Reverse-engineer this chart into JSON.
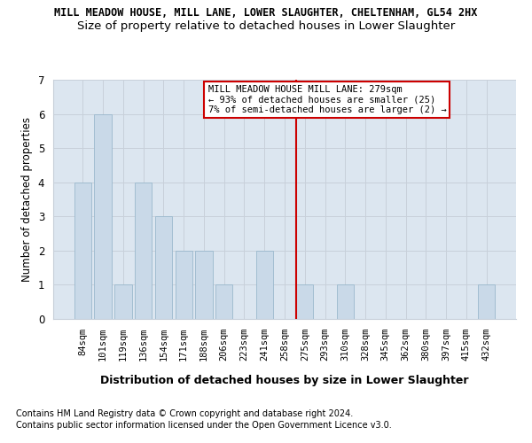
{
  "title": "MILL MEADOW HOUSE, MILL LANE, LOWER SLAUGHTER, CHELTENHAM, GL54 2HX",
  "subtitle": "Size of property relative to detached houses in Lower Slaughter",
  "xlabel": "Distribution of detached houses by size in Lower Slaughter",
  "ylabel": "Number of detached properties",
  "categories": [
    "84sqm",
    "101sqm",
    "119sqm",
    "136sqm",
    "154sqm",
    "171sqm",
    "188sqm",
    "206sqm",
    "223sqm",
    "241sqm",
    "258sqm",
    "275sqm",
    "293sqm",
    "310sqm",
    "328sqm",
    "345sqm",
    "362sqm",
    "380sqm",
    "397sqm",
    "415sqm",
    "432sqm"
  ],
  "values": [
    4,
    6,
    1,
    4,
    3,
    2,
    2,
    1,
    0,
    2,
    0,
    1,
    0,
    1,
    0,
    0,
    0,
    0,
    0,
    0,
    1
  ],
  "bar_color": "#c9d9e8",
  "bar_edge_color": "#9ab8cc",
  "marker_label_line1": "MILL MEADOW HOUSE MILL LANE: 279sqm",
  "marker_label_line2": "← 93% of detached houses are smaller (25)",
  "marker_label_line3": "7% of semi-detached houses are larger (2) →",
  "ylim": [
    0,
    7
  ],
  "yticks": [
    0,
    1,
    2,
    3,
    4,
    5,
    6,
    7
  ],
  "grid_color": "#c8d0da",
  "background_color": "#dce6f0",
  "footnote1": "Contains HM Land Registry data © Crown copyright and database right 2024.",
  "footnote2": "Contains public sector information licensed under the Open Government Licence v3.0.",
  "title_fontsize": 8.5,
  "subtitle_fontsize": 9.5,
  "axis_ylabel_fontsize": 8.5,
  "axis_xlabel_fontsize": 9,
  "tick_fontsize": 7.5,
  "annotation_fontsize": 7.5,
  "footnote_fontsize": 7,
  "red_line_color": "#cc0000",
  "annotation_box_edge": "#cc0000",
  "marker_bin_index": 11
}
